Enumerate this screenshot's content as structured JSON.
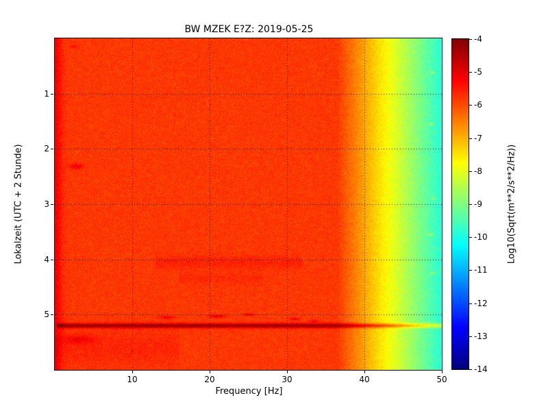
{
  "chart_data": {
    "type": "heatmap",
    "subtype": "spectrogram",
    "title": "BW MZEK E?Z: 2019-05-25",
    "xlabel": "Frequency [Hz]",
    "ylabel": "Lokalzeit (UTC + 2 Stunde)",
    "colorbar_label": "Log10(Sqrt(m**2/s**2/Hz))",
    "colormap": "jet",
    "xlim": [
      0,
      50
    ],
    "ylim_hours": [
      0,
      6
    ],
    "y_axis_direction": "down",
    "xticks": [
      10,
      20,
      30,
      40,
      50
    ],
    "yticks": [
      1,
      2,
      3,
      4,
      5
    ],
    "colorbar_ticks": [
      -4,
      -5,
      -6,
      -7,
      -8,
      -9,
      -10,
      -11,
      -12,
      -13,
      -14
    ],
    "value_range": [
      -14,
      -4
    ],
    "grid_style": "dotted",
    "background_level": -5.8,
    "noise_amplitude": 0.55,
    "low_freq_edge": {
      "f_scale": 0.9,
      "boost": 0.65
    },
    "rolloff": {
      "start_hz": 36.5,
      "end_hz": 50,
      "drop": 4.1
    },
    "features": [
      {
        "kind": "hline",
        "time": 5.2,
        "halfwidth": 0.04,
        "fmin": 0.3,
        "fmax": 50,
        "boost": 1.75,
        "note": "strong broadband event line"
      },
      {
        "kind": "blob",
        "time": 5.05,
        "freq": 14.5,
        "rt": 0.025,
        "rf": 0.9,
        "boost": 0.85
      },
      {
        "kind": "blob",
        "time": 5.03,
        "freq": 21.0,
        "rt": 0.025,
        "rf": 1.0,
        "boost": 0.9
      },
      {
        "kind": "blob",
        "time": 5.0,
        "freq": 25.0,
        "rt": 0.02,
        "rf": 0.7,
        "boost": 0.75
      },
      {
        "kind": "blob",
        "time": 5.08,
        "freq": 31.0,
        "rt": 0.02,
        "rf": 0.7,
        "boost": 0.8
      },
      {
        "kind": "blob",
        "time": 5.12,
        "freq": 33.5,
        "rt": 0.02,
        "rf": 0.6,
        "boost": 0.75
      },
      {
        "kind": "blob",
        "time": 2.32,
        "freq": 2.8,
        "rt": 0.05,
        "rf": 0.9,
        "boost": 0.7
      },
      {
        "kind": "blob",
        "time": 0.15,
        "freq": 2.5,
        "rt": 0.03,
        "rf": 0.6,
        "boost": 0.5
      },
      {
        "kind": "blob",
        "time": 5.45,
        "freq": 3.0,
        "rt": 0.08,
        "rf": 2.0,
        "boost": 0.5
      },
      {
        "kind": "band",
        "time": 4.05,
        "fmin": 13,
        "fmax": 32,
        "rt": 0.12,
        "boost": 0.3
      },
      {
        "kind": "band",
        "time": 4.35,
        "fmin": 16,
        "fmax": 27,
        "rt": 0.1,
        "boost": 0.2
      },
      {
        "kind": "band",
        "time": 5.62,
        "fmin": 0,
        "fmax": 16,
        "rt": 0.3,
        "boost": 0.25
      },
      {
        "kind": "blob",
        "time": 0.62,
        "freq": 48.8,
        "rt": 0.02,
        "rf": 0.3,
        "boost": 1.1
      },
      {
        "kind": "blob",
        "time": 1.55,
        "freq": 48.6,
        "rt": 0.02,
        "rf": 0.3,
        "boost": 1.1
      },
      {
        "kind": "blob",
        "time": 2.9,
        "freq": 48.9,
        "rt": 0.02,
        "rf": 0.3,
        "boost": 1.0
      },
      {
        "kind": "blob",
        "time": 3.55,
        "freq": 48.5,
        "rt": 0.02,
        "rf": 0.3,
        "boost": 1.1
      },
      {
        "kind": "blob",
        "time": 4.25,
        "freq": 48.8,
        "rt": 0.02,
        "rf": 0.3,
        "boost": 1.0
      }
    ]
  }
}
